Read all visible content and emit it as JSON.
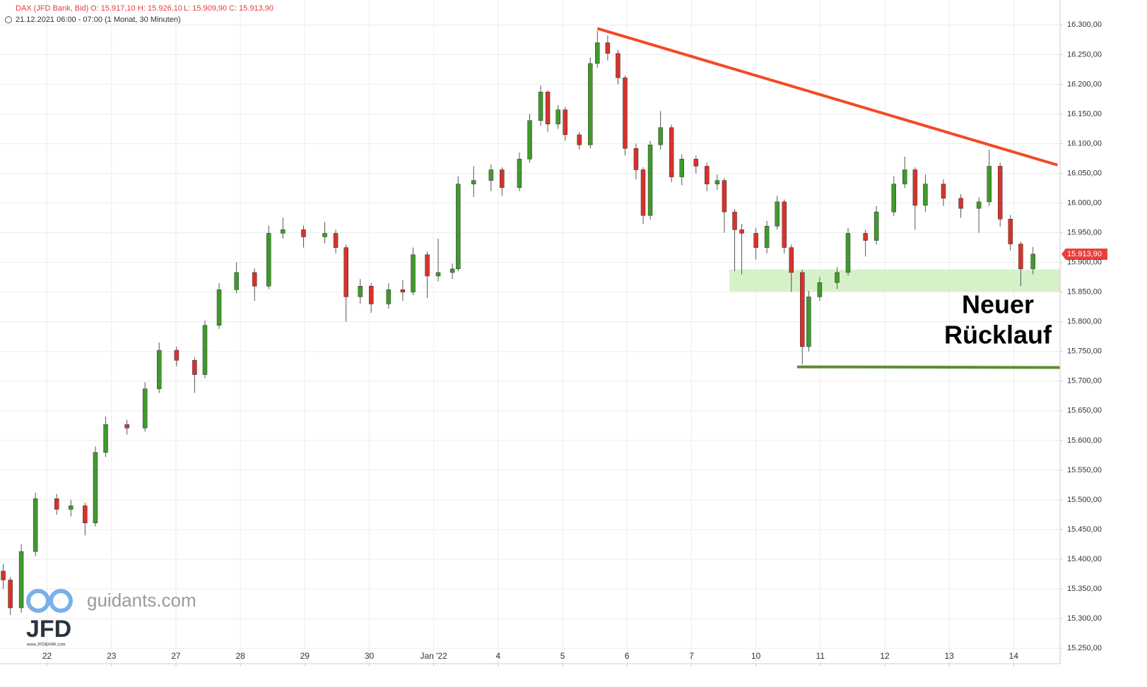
{
  "chart_data": {
    "type": "candlestick",
    "title": "DAX (JFD Bank, Bid)",
    "ohlc_summary": [
      "O: 15.917,10",
      "H: 15.926,10",
      "L: 15.909,90",
      "C: 15.913,90"
    ],
    "subtitle": "21.12.2021 06:00 - 07:00",
    "period": "(1 Monat, 30 Minuten)",
    "up_color": "#3f9a2b",
    "down_color": "#d8322b",
    "grid": true,
    "xlim": [
      -0.73,
      15.72
    ],
    "xticks": [
      {
        "value": 0,
        "label": "22"
      },
      {
        "value": 1,
        "label": "23"
      },
      {
        "value": 2,
        "label": "27"
      },
      {
        "value": 3,
        "label": "28"
      },
      {
        "value": 4,
        "label": "29"
      },
      {
        "value": 5,
        "label": "30"
      },
      {
        "value": 6,
        "label": "Jan '22"
      },
      {
        "value": 7,
        "label": "4"
      },
      {
        "value": 8,
        "label": "5"
      },
      {
        "value": 9,
        "label": "6"
      },
      {
        "value": 10,
        "label": "7"
      },
      {
        "value": 11,
        "label": "10"
      },
      {
        "value": 12,
        "label": "11"
      },
      {
        "value": 13,
        "label": "12"
      },
      {
        "value": 14,
        "label": "13"
      },
      {
        "value": 15,
        "label": "14"
      }
    ],
    "ylim": [
      15224,
      16342
    ],
    "yticks": [
      {
        "value": 15250,
        "label": "15.250,00"
      },
      {
        "value": 15300,
        "label": "15.300,00"
      },
      {
        "value": 15350,
        "label": "15.350,00"
      },
      {
        "value": 15400,
        "label": "15.400,00"
      },
      {
        "value": 15450,
        "label": "15.450,00"
      },
      {
        "value": 15500,
        "label": "15.500,00"
      },
      {
        "value": 15550,
        "label": "15.550,00"
      },
      {
        "value": 15600,
        "label": "15.600,00"
      },
      {
        "value": 15650,
        "label": "15.650,00"
      },
      {
        "value": 15700,
        "label": "15.700,00"
      },
      {
        "value": 15750,
        "label": "15.750,00"
      },
      {
        "value": 15800,
        "label": "15.800,00"
      },
      {
        "value": 15850,
        "label": "15.850,00"
      },
      {
        "value": 15900,
        "label": "15.900,00"
      },
      {
        "value": 15950,
        "label": "15.950,00"
      },
      {
        "value": 16000,
        "label": "16.000,00"
      },
      {
        "value": 16050,
        "label": "16.050,00"
      },
      {
        "value": 16100,
        "label": "16.100,00"
      },
      {
        "value": 16150,
        "label": "16.150,00"
      },
      {
        "value": 16200,
        "label": "16.200,00"
      },
      {
        "value": 16250,
        "label": "16.250,00"
      },
      {
        "value": 16300,
        "label": "16.300,00"
      }
    ],
    "x": [
      -0.68,
      -0.57,
      -0.4,
      -0.18,
      0.15,
      0.37,
      0.59,
      0.75,
      0.91,
      1.24,
      1.52,
      1.74,
      2.01,
      2.29,
      2.45,
      2.67,
      2.94,
      3.22,
      3.44,
      3.66,
      3.98,
      4.31,
      4.48,
      4.64,
      4.86,
      5.03,
      5.3,
      5.52,
      5.68,
      5.9,
      6.07,
      6.29,
      6.38,
      6.62,
      6.89,
      7.06,
      7.33,
      7.49,
      7.66,
      7.77,
      7.93,
      8.04,
      8.26,
      8.43,
      8.54,
      8.7,
      8.86,
      8.97,
      9.14,
      9.25,
      9.36,
      9.52,
      9.69,
      9.85,
      10.07,
      10.24,
      10.4,
      10.51,
      10.67,
      10.78,
      11.0,
      11.17,
      11.33,
      11.44,
      11.55,
      11.72,
      11.82,
      11.99,
      12.26,
      12.43,
      12.7,
      12.87,
      13.14,
      13.31,
      13.47,
      13.63,
      13.91,
      14.18,
      14.46,
      14.62,
      14.79,
      14.95,
      15.11,
      15.3
    ],
    "open": [
      15380,
      15365,
      15318,
      15413,
      15502,
      15484,
      15490,
      15461,
      15580,
      15627,
      15621,
      15687,
      15752,
      15735,
      15711,
      15794,
      15854,
      15883,
      15860,
      15949,
      15955,
      15943,
      15949,
      15925,
      15842,
      15860,
      15830,
      15854,
      15850,
      15913,
      15877,
      15883,
      15889,
      16032,
      16038,
      16056,
      16026,
      16074,
      16139,
      16187,
      16133,
      16157,
      16115,
      16098,
      16235,
      16270,
      16252,
      16211,
      16092,
      16056,
      15979,
      16098,
      16127,
      16044,
      16074,
      16062,
      16032,
      16038,
      15985,
      15955,
      15949,
      15925,
      15961,
      16002,
      15925,
      15883,
      15758,
      15842,
      15866,
      15883,
      15949,
      15937,
      15985,
      16032,
      16056,
      15996,
      16032,
      16008,
      15991,
      16002,
      16062,
      15973,
      15931,
      15889
    ],
    "high": [
      15392,
      15370,
      15425,
      15512,
      15510,
      15500,
      15495,
      15590,
      15640,
      15635,
      15698,
      15765,
      15758,
      15740,
      15802,
      15865,
      15900,
      15890,
      15962,
      15975,
      15962,
      15968,
      15955,
      15930,
      15872,
      15865,
      15865,
      15870,
      15925,
      15918,
      15940,
      15898,
      16045,
      16062,
      16065,
      16060,
      16085,
      16150,
      16198,
      16190,
      16165,
      16162,
      16120,
      16245,
      16290,
      16282,
      16258,
      16215,
      16100,
      16060,
      16105,
      16155,
      16132,
      16082,
      16080,
      16068,
      16048,
      16042,
      15990,
      15965,
      15958,
      15970,
      16012,
      16006,
      15930,
      15888,
      15852,
      15875,
      15892,
      15958,
      15955,
      15995,
      16045,
      16078,
      16060,
      16048,
      16040,
      16015,
      16010,
      16090,
      16068,
      15980,
      15935,
      15926
    ],
    "low": [
      15350,
      15306,
      15310,
      15405,
      15475,
      15472,
      15440,
      15455,
      15572,
      15610,
      15615,
      15680,
      15725,
      15680,
      15705,
      15788,
      15848,
      15835,
      15855,
      15940,
      15925,
      15932,
      15915,
      15800,
      15830,
      15815,
      15822,
      15835,
      15845,
      15840,
      15868,
      15872,
      15885,
      16010,
      16020,
      16012,
      16020,
      16068,
      16130,
      16120,
      16125,
      16105,
      16090,
      16092,
      16228,
      16240,
      16200,
      16080,
      16040,
      15965,
      15972,
      16090,
      16035,
      16030,
      16050,
      16020,
      16022,
      15950,
      15885,
      15880,
      15905,
      15915,
      15955,
      15915,
      15850,
      15728,
      15750,
      15835,
      15855,
      15878,
      15910,
      15930,
      15978,
      16025,
      15955,
      15985,
      15995,
      15975,
      15950,
      15995,
      15960,
      15920,
      15860,
      15880
    ],
    "close": [
      15365,
      15318,
      15413,
      15502,
      15484,
      15490,
      15461,
      15580,
      15627,
      15621,
      15687,
      15752,
      15735,
      15711,
      15794,
      15854,
      15883,
      15860,
      15949,
      15955,
      15943,
      15949,
      15925,
      15842,
      15860,
      15830,
      15854,
      15850,
      15913,
      15877,
      15883,
      15889,
      16032,
      16038,
      16056,
      16026,
      16074,
      16139,
      16187,
      16133,
      16157,
      16115,
      16098,
      16235,
      16270,
      16252,
      16211,
      16092,
      16056,
      15979,
      16098,
      16127,
      16044,
      16074,
      16062,
      16032,
      16038,
      15985,
      15955,
      15949,
      15925,
      15961,
      16002,
      15925,
      15883,
      15758,
      15842,
      15866,
      15883,
      15949,
      15937,
      15985,
      16032,
      16056,
      15996,
      16032,
      16008,
      15991,
      16002,
      16062,
      15973,
      15931,
      15889,
      15914
    ],
    "last_price": {
      "value": 15913.9,
      "label": "15.913,90"
    },
    "last_price_color": "#e8413b",
    "trendlines": [
      {
        "color": "#f24a25",
        "x": [
          8.54,
          15.68
        ],
        "y": [
          16294,
          16064
        ]
      },
      {
        "color": "#5a8e32",
        "x": [
          11.64,
          15.72
        ],
        "y": [
          15724,
          15723
        ]
      }
    ],
    "zone": {
      "color": "#c8ecb6",
      "x": [
        10.59,
        15.72
      ],
      "y": [
        15851,
        15888
      ]
    },
    "annotation_lines": [
      "Neuer",
      "Rücklauf"
    ],
    "watermark": {
      "site": "guidants.com",
      "brand": "JFD",
      "url": "www.JFDBANK.com"
    }
  }
}
